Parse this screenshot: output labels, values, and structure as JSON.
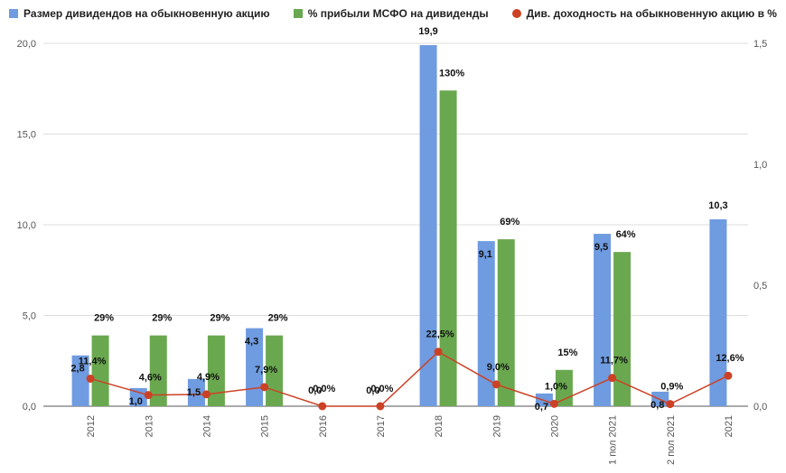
{
  "chart_data": {
    "type": "bar",
    "categories": [
      "2012",
      "2013",
      "2014",
      "2015",
      "2016",
      "2017",
      "2018",
      "2019",
      "2020",
      "1 пол 2021",
      "2 пол 2021",
      "2021"
    ],
    "series": [
      {
        "name": "Размер дивидендов на обыкновенную акцию",
        "type": "bar",
        "axis": "left",
        "color": "#6f9be0",
        "values": [
          2.8,
          1.0,
          1.5,
          4.3,
          0,
          0,
          19.9,
          9.1,
          0.7,
          9.5,
          0.8,
          10.3
        ],
        "labels": [
          "2,8",
          "1,0",
          "1,5",
          "4,3",
          "0,0",
          "0,0",
          "19,9",
          "9,1",
          "0,7",
          "9,5",
          "0,8",
          "10,3"
        ]
      },
      {
        "name": "% прибыли МСФО на дивиденды",
        "type": "bar",
        "axis": "left",
        "color": "#6aa84f",
        "values": [
          3.9,
          3.9,
          3.9,
          3.9,
          null,
          null,
          17.4,
          9.2,
          2.0,
          8.5,
          null,
          null
        ],
        "labels": [
          "29%",
          "29%",
          "29%",
          "29%",
          "",
          "",
          "130%",
          "69%",
          "15%",
          "64%",
          "",
          ""
        ]
      },
      {
        "name": "Див. доходность на обыкновенную акцию в %",
        "type": "line",
        "axis": "right",
        "color": "#cc4125",
        "values": [
          0.114,
          0.046,
          0.049,
          0.079,
          0.0,
          0.0,
          0.225,
          0.09,
          0.01,
          0.117,
          0.009,
          0.126
        ],
        "labels": [
          "11,4%",
          "4,6%",
          "4,9%",
          "7,9%",
          "0,0%",
          "0,0%",
          "22,5%",
          "9,0%",
          "1,0%",
          "11,7%",
          "0,9%",
          "12,6%"
        ]
      }
    ],
    "yaxis_left": {
      "min": 0,
      "max": 20,
      "ticks": [
        "0,0",
        "5,0",
        "10,0",
        "15,0",
        "20,0"
      ]
    },
    "yaxis_right": {
      "min": 0,
      "max": 1.5,
      "ticks": [
        "0,0",
        "0,5",
        "1,0",
        "1,5"
      ]
    },
    "legend_position": "top",
    "grid": true,
    "title": "",
    "xlabel": "",
    "ylabel": ""
  }
}
